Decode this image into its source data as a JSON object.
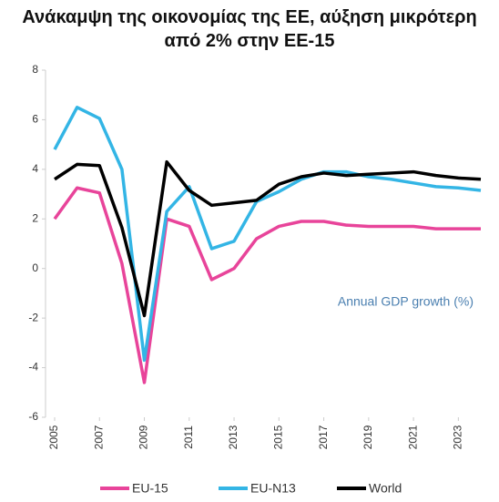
{
  "chart_data": {
    "type": "line",
    "title": "Ανάκαμψη της οικονομίας της ΕΕ, αύξηση μικρότερη από 2% στην ΕΕ-15",
    "annotation": "Annual GDP growth (%)",
    "x": [
      2005,
      2006,
      2007,
      2008,
      2009,
      2010,
      2011,
      2012,
      2013,
      2014,
      2015,
      2016,
      2017,
      2018,
      2019,
      2020,
      2021,
      2022,
      2023,
      2024
    ],
    "series": [
      {
        "name": "EU-15",
        "color": "#e8449a",
        "values": [
          2.0,
          3.25,
          3.05,
          0.2,
          -4.6,
          2.0,
          1.7,
          -0.45,
          0.0,
          1.2,
          1.7,
          1.9,
          1.9,
          1.75,
          1.7,
          1.7,
          1.7,
          1.6,
          1.6,
          1.6
        ]
      },
      {
        "name": "EU-N13",
        "color": "#33b5e5",
        "values": [
          4.8,
          6.5,
          6.05,
          4.0,
          -3.7,
          2.3,
          3.3,
          0.8,
          1.1,
          2.7,
          3.1,
          3.6,
          3.9,
          3.9,
          3.7,
          3.6,
          3.45,
          3.3,
          3.25,
          3.15
        ]
      },
      {
        "name": "World",
        "color": "#000000",
        "values": [
          3.6,
          4.2,
          4.15,
          1.65,
          -1.9,
          4.3,
          3.15,
          2.55,
          2.65,
          2.75,
          3.4,
          3.7,
          3.85,
          3.75,
          3.8,
          3.85,
          3.9,
          3.75,
          3.65,
          3.6
        ]
      }
    ],
    "xlim": [
      2005,
      2024
    ],
    "xticks": [
      2005,
      2007,
      2009,
      2011,
      2013,
      2015,
      2017,
      2019,
      2021,
      2023
    ],
    "ylim": [
      -6,
      8
    ],
    "yticks": [
      -6,
      -4,
      -2,
      0,
      2,
      4,
      6,
      8
    ],
    "grid": false,
    "legend": "bottom"
  }
}
